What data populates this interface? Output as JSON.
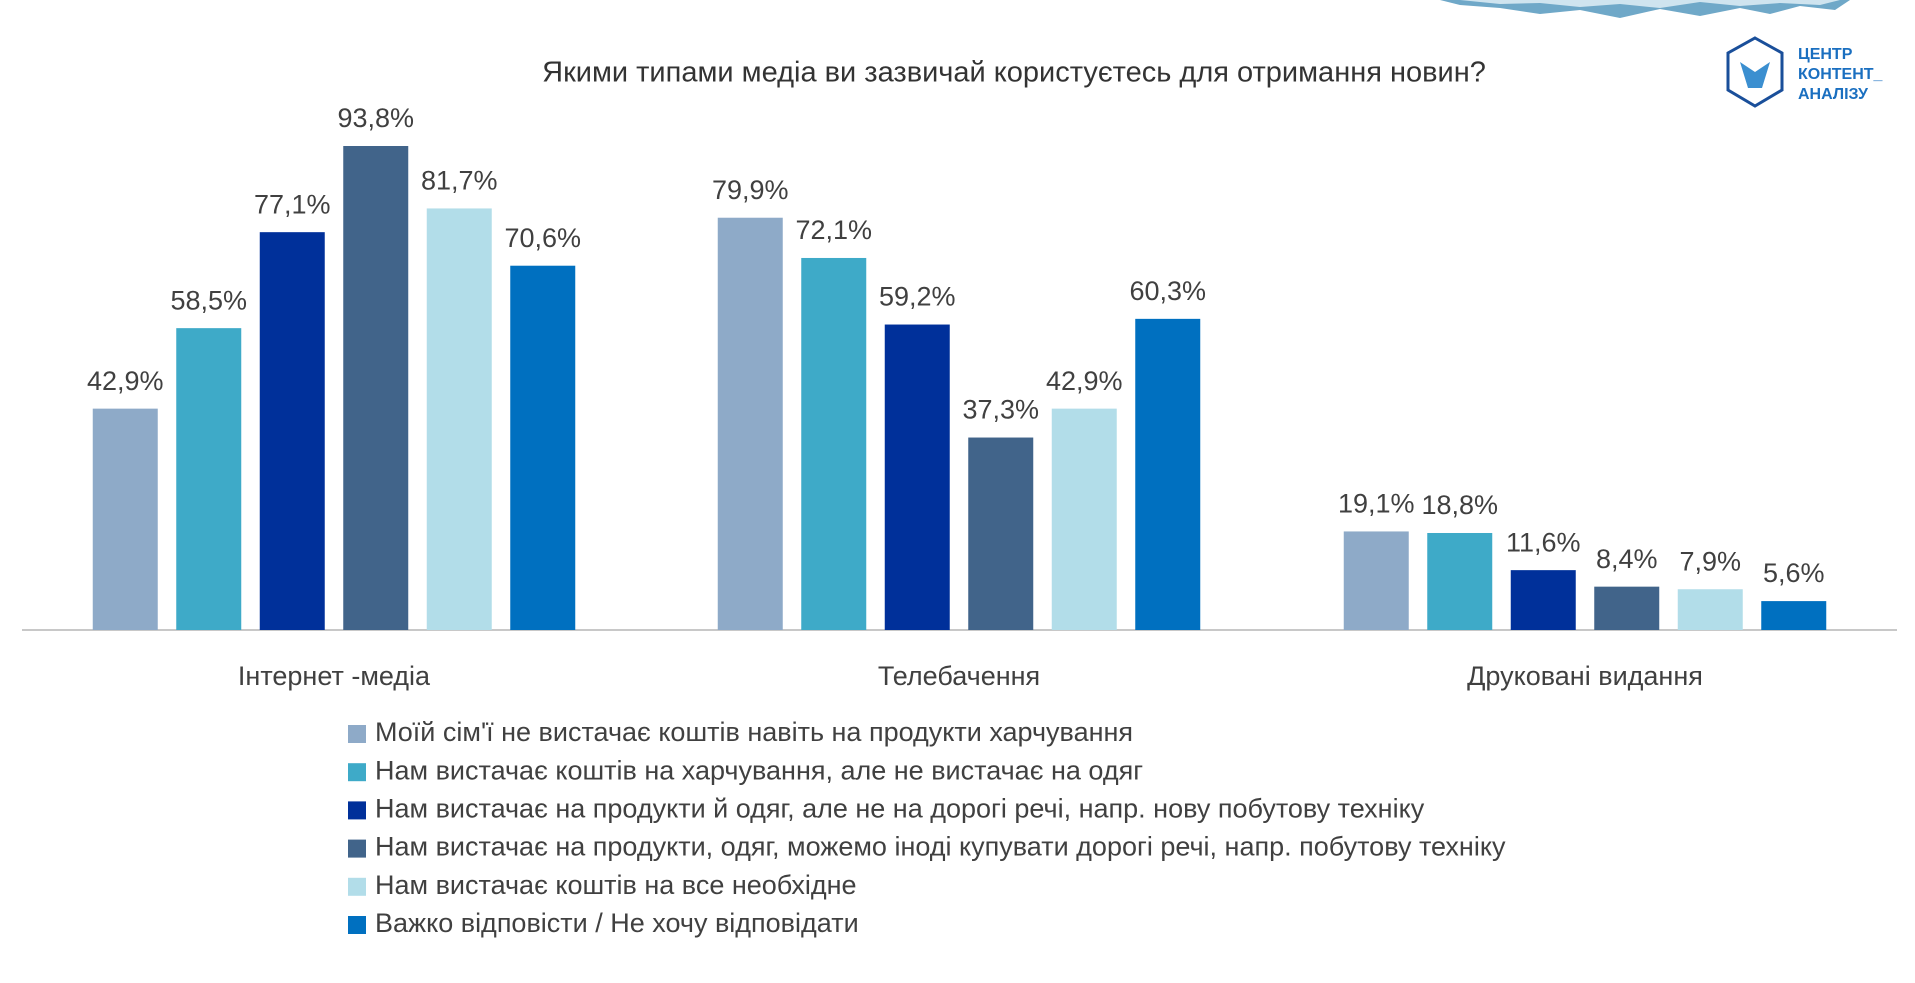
{
  "chart_data": {
    "type": "grouped-bar",
    "title": "Якими типами медіа ви зазвичай користуєтесь для отримання новин?",
    "categories": [
      "Інтернет -медіа",
      "Телебачення",
      "Друковані видання"
    ],
    "series": [
      {
        "name": "Моїй сім'ї не вистачає коштів навіть на продукти харчування",
        "color": "#8eaac8",
        "values": [
          42.9,
          79.9,
          19.1
        ],
        "value_labels": [
          "42,9%",
          "79,9%",
          "19,1%"
        ]
      },
      {
        "name": "Нам вистачає коштів на харчування, але не вистачає на одяг",
        "color": "#3eaac8",
        "values": [
          58.5,
          72.1,
          18.8
        ],
        "value_labels": [
          "58,5%",
          "72,1%",
          "18,8%"
        ]
      },
      {
        "name": "Нам вистачає на продукти й одяг, але не на дорогі речі, напр. нову побутову техніку",
        "color": "#00309a",
        "values": [
          77.1,
          59.2,
          11.6
        ],
        "value_labels": [
          "77,1%",
          "59,2%",
          "11,6%"
        ]
      },
      {
        "name": "Нам вистачає на продукти, одяг, можемо іноді купувати дорогі речі, напр. побутову техніку",
        "color": "#41648a",
        "values": [
          93.8,
          37.3,
          8.4
        ],
        "value_labels": [
          "93,8%",
          "37,3%",
          "8,4%"
        ]
      },
      {
        "name": "Нам вистачає коштів на все необхідне",
        "color": "#b2dde9",
        "values": [
          81.7,
          42.9,
          7.9
        ],
        "value_labels": [
          "81,7%",
          "42,9%",
          "7,9%"
        ]
      },
      {
        "name": "Важко відповісти / Не хочу відповідати",
        "color": "#0070c0",
        "values": [
          70.6,
          60.3,
          5.6
        ],
        "value_labels": [
          "70,6%",
          "60,3%",
          "5,6%"
        ]
      }
    ]
  },
  "logo": [
    "ЦЕНТР",
    "КОНТЕНТ_",
    "АНАЛІЗУ"
  ]
}
